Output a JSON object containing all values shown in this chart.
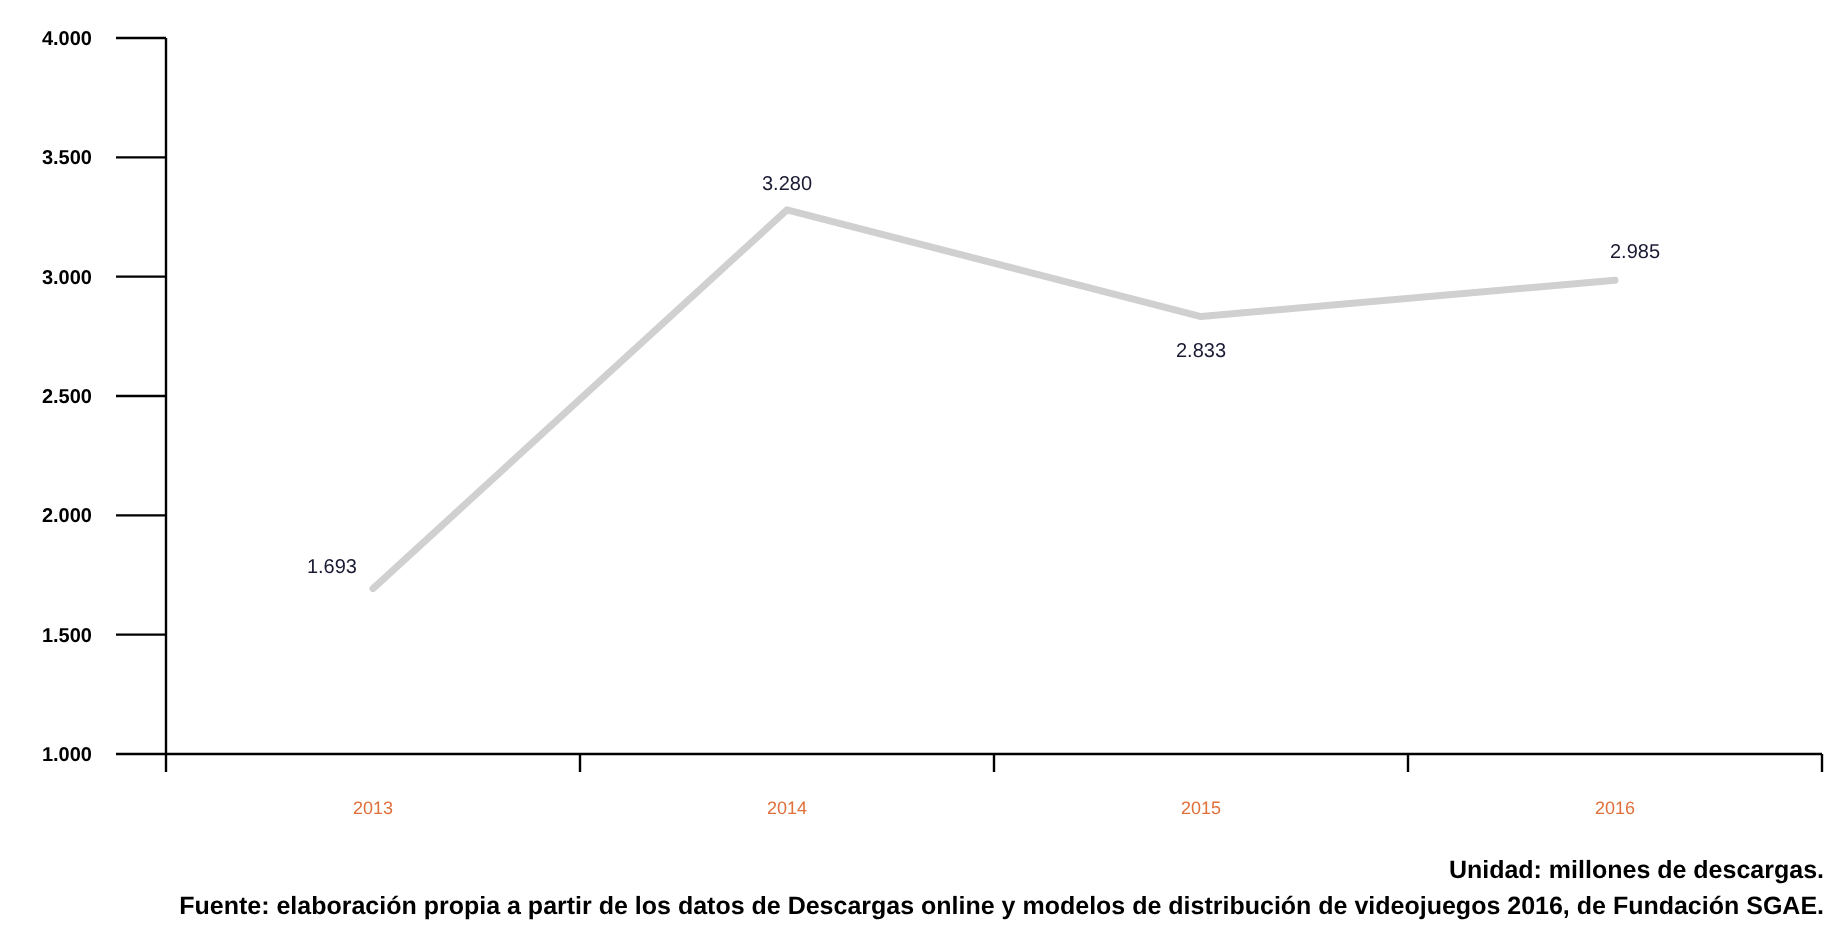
{
  "chart_data": {
    "type": "line",
    "categories": [
      "2013",
      "2014",
      "2015",
      "2016"
    ],
    "series": [
      {
        "color": "#d0d0d0",
        "values": [
          1693,
          3280,
          2833,
          2985
        ],
        "value_labels": [
          "1.693",
          "3.280",
          "2.833",
          "2.985"
        ]
      }
    ],
    "ylim": [
      1000,
      4000
    ],
    "yticks": [
      {
        "value": 1000,
        "label": "1.000"
      },
      {
        "value": 1500,
        "label": "1.500"
      },
      {
        "value": 2000,
        "label": "2.000"
      },
      {
        "value": 2500,
        "label": "2.500"
      },
      {
        "value": 3000,
        "label": "3.000"
      },
      {
        "value": 3500,
        "label": "3.500"
      },
      {
        "value": 4000,
        "label": "4.000"
      }
    ],
    "marker": "none",
    "line_style": "solid",
    "annotations": [
      "Unidad: millones de descargas.",
      "Fuente: elaboración propia a partir de los datos de Descargas online y modelos de distribución de videojuegos 2016, de Fundación SGAE."
    ]
  }
}
